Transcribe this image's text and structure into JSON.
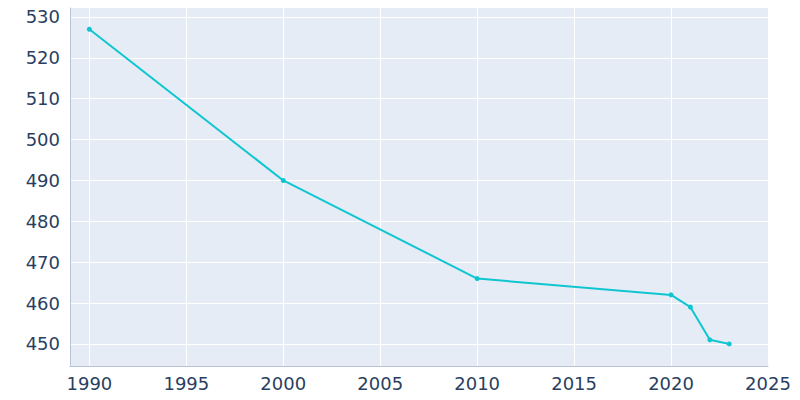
{
  "chart_data": {
    "type": "line",
    "x": [
      1990,
      2000,
      2010,
      2020,
      2021,
      2022,
      2023
    ],
    "values": [
      527,
      490,
      466,
      462,
      459,
      451,
      450
    ],
    "color": "#0fc6d0",
    "marker": "circle",
    "line_style": "solid",
    "xlim": [
      1989,
      2025
    ],
    "xticks": [
      1990,
      1995,
      2000,
      2005,
      2010,
      2015,
      2020,
      2025
    ],
    "ylim": [
      444.6,
      532.2
    ],
    "yticks": [
      450,
      460,
      470,
      480,
      490,
      500,
      510,
      520,
      530
    ],
    "grid": true
  }
}
